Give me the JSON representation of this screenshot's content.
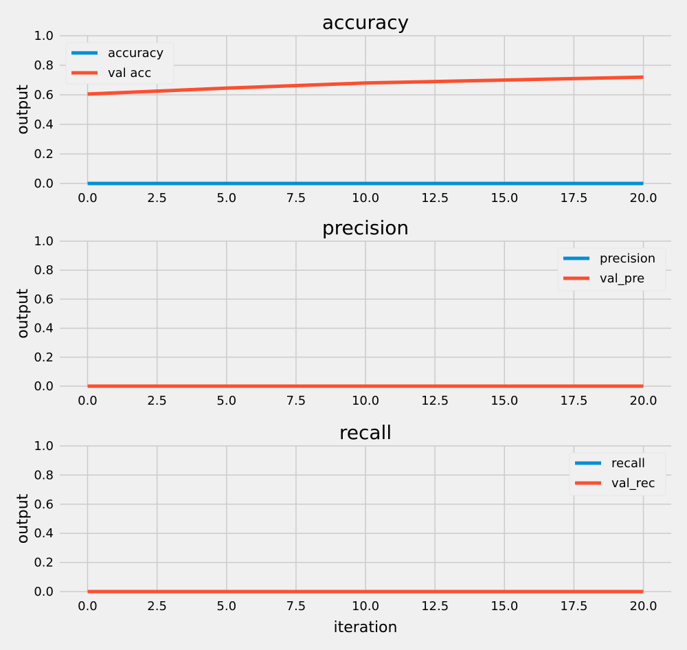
{
  "chart_data": [
    {
      "type": "line",
      "title": "accuracy",
      "xlabel": "",
      "ylabel": "output",
      "xlim": [
        -1,
        21
      ],
      "ylim": [
        0,
        1
      ],
      "xticks": [
        "0.0",
        "2.5",
        "5.0",
        "7.5",
        "10.0",
        "12.5",
        "15.0",
        "17.5",
        "20.0"
      ],
      "yticks": [
        "0.0",
        "0.2",
        "0.4",
        "0.6",
        "0.8",
        "1.0"
      ],
      "grid": true,
      "legend_position": "top-left",
      "x": [
        0,
        5,
        10,
        15,
        20
      ],
      "series": [
        {
          "name": "accuracy",
          "color": "#008fd5",
          "values": [
            0.0,
            0.0,
            0.0,
            0.0,
            0.0
          ]
        },
        {
          "name": "val acc",
          "color": "#fc4f30",
          "values": [
            0.605,
            0.645,
            0.68,
            0.7,
            0.72
          ]
        }
      ]
    },
    {
      "type": "line",
      "title": "precision",
      "xlabel": "",
      "ylabel": "output",
      "xlim": [
        -1,
        21
      ],
      "ylim": [
        0,
        1
      ],
      "xticks": [
        "0.0",
        "2.5",
        "5.0",
        "7.5",
        "10.0",
        "12.5",
        "15.0",
        "17.5",
        "20.0"
      ],
      "yticks": [
        "0.0",
        "0.2",
        "0.4",
        "0.6",
        "0.8",
        "1.0"
      ],
      "grid": true,
      "legend_position": "top-right",
      "x": [
        0,
        5,
        10,
        15,
        20
      ],
      "series": [
        {
          "name": "precision",
          "color": "#008fd5",
          "values": [
            0.0,
            0.0,
            0.0,
            0.0,
            0.0
          ]
        },
        {
          "name": "val_pre",
          "color": "#fc4f30",
          "values": [
            0.0,
            0.0,
            0.0,
            0.0,
            0.0
          ]
        }
      ]
    },
    {
      "type": "line",
      "title": "recall",
      "xlabel": "iteration",
      "ylabel": "output",
      "xlim": [
        -1,
        21
      ],
      "ylim": [
        0,
        1
      ],
      "xticks": [
        "0.0",
        "2.5",
        "5.0",
        "7.5",
        "10.0",
        "12.5",
        "15.0",
        "17.5",
        "20.0"
      ],
      "yticks": [
        "0.0",
        "0.2",
        "0.4",
        "0.6",
        "0.8",
        "1.0"
      ],
      "grid": true,
      "legend_position": "top-right",
      "x": [
        0,
        5,
        10,
        15,
        20
      ],
      "series": [
        {
          "name": "recall",
          "color": "#008fd5",
          "values": [
            0.0,
            0.0,
            0.0,
            0.0,
            0.0
          ]
        },
        {
          "name": "val_rec",
          "color": "#fc4f30",
          "values": [
            0.0,
            0.0,
            0.0,
            0.0,
            0.0
          ]
        }
      ]
    }
  ]
}
